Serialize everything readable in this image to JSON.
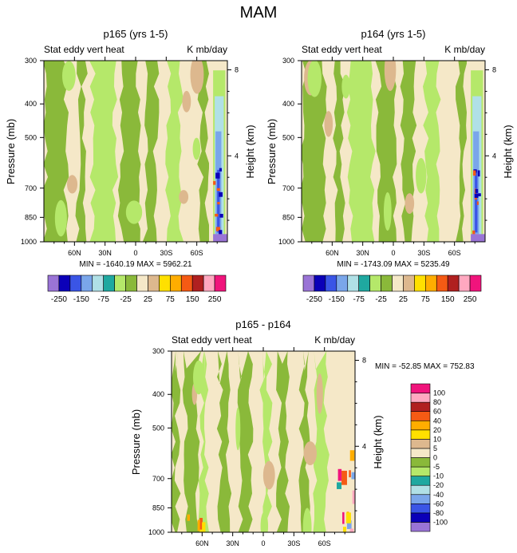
{
  "page_title": "MAM",
  "colors": {
    "shade_palette": [
      "#9a74d6",
      "#0b00b8",
      "#3a55e6",
      "#7aa6ea",
      "#b0e0e6",
      "#1fa8a0",
      "#b5e86a",
      "#8ab93a",
      "#f5e8c8",
      "#ddb88e",
      "#ffe000",
      "#ffad00",
      "#f55a14",
      "#b02020",
      "#ffa8c0",
      "#f0147c"
    ],
    "field_base": "#f5e8c8",
    "field_green": "#8ab93a",
    "field_light_green": "#b5e86a"
  },
  "chart_data": [
    {
      "id": "p165",
      "type": "heatmap",
      "title": "p165 (yrs 1-5)",
      "left_label": "Stat eddy vert heat",
      "right_label": "K mb/day",
      "ylabel": "Pressure (mb)",
      "ylabel_right": "Height (km)",
      "x_ticks": [
        "60N",
        "30N",
        "0",
        "30S",
        "60S"
      ],
      "x_values": [
        60,
        30,
        0,
        -30,
        -60
      ],
      "xlim": [
        90,
        -90
      ],
      "y_ticks": [
        "300",
        "400",
        "500",
        "700",
        "850",
        "1000"
      ],
      "y_values": [
        300,
        400,
        500,
        700,
        850,
        1000
      ],
      "ylim": [
        300,
        1000
      ],
      "height_ticks": [
        "8",
        "4"
      ],
      "height_values": [
        8,
        4
      ],
      "stats": "MIN = -1640.19   MAX = 5962.21",
      "min": -1640.19,
      "max": 5962.21,
      "colorbar_levels": [
        -250,
        -200,
        -150,
        -100,
        -75,
        -50,
        -25,
        -10,
        10,
        25,
        50,
        75,
        100,
        150,
        200,
        250
      ],
      "colorbar_labels": [
        "-250",
        "-150",
        "-75",
        "-25",
        "25",
        "75",
        "150",
        "250"
      ]
    },
    {
      "id": "p164",
      "type": "heatmap",
      "title": "p164 (yrs 1-5)",
      "left_label": "Stat eddy vert heat",
      "right_label": "K mb/day",
      "ylabel": "Pressure (mb)",
      "ylabel_right": "Height (km)",
      "x_ticks": [
        "60N",
        "30N",
        "0",
        "30S",
        "60S"
      ],
      "x_values": [
        60,
        30,
        0,
        -30,
        -60
      ],
      "xlim": [
        90,
        -90
      ],
      "y_ticks": [
        "300",
        "400",
        "500",
        "700",
        "850",
        "1000"
      ],
      "y_values": [
        300,
        400,
        500,
        700,
        850,
        1000
      ],
      "ylim": [
        300,
        1000
      ],
      "height_ticks": [
        "8",
        "4"
      ],
      "height_values": [
        8,
        4
      ],
      "stats": "MIN = -1743.09   MAX = 5235.49",
      "min": -1743.09,
      "max": 5235.49,
      "colorbar_levels": [
        -250,
        -200,
        -150,
        -100,
        -75,
        -50,
        -25,
        -10,
        10,
        25,
        50,
        75,
        100,
        150,
        200,
        250
      ],
      "colorbar_labels": [
        "-250",
        "-150",
        "-75",
        "-25",
        "25",
        "75",
        "150",
        "250"
      ]
    },
    {
      "id": "diff",
      "type": "heatmap",
      "title": "p165 - p164",
      "left_label": "Stat eddy vert heat",
      "right_label": "K mb/day",
      "ylabel": "Pressure (mb)",
      "ylabel_right": "Height (km)",
      "x_ticks": [
        "60N",
        "30N",
        "0",
        "30S",
        "60S"
      ],
      "x_values": [
        60,
        30,
        0,
        -30,
        -60
      ],
      "xlim": [
        90,
        -90
      ],
      "y_ticks": [
        "300",
        "400",
        "500",
        "700",
        "850",
        "1000"
      ],
      "y_values": [
        300,
        400,
        500,
        700,
        850,
        1000
      ],
      "ylim": [
        300,
        1000
      ],
      "height_ticks": [
        "8",
        "4"
      ],
      "height_values": [
        8,
        4
      ],
      "stats": "MIN = -52.85   MAX = 752.83",
      "min": -52.85,
      "max": 752.83,
      "colorbar_levels": [
        -100,
        -80,
        -60,
        -40,
        -20,
        -10,
        -5,
        0,
        5,
        10,
        20,
        40,
        60,
        80,
        100
      ],
      "colorbar_labels": [
        "-100",
        "-80",
        "-60",
        "-40",
        "-20",
        "-10",
        "-5",
        "0",
        "5",
        "10",
        "20",
        "40",
        "60",
        "80",
        "100"
      ]
    }
  ]
}
